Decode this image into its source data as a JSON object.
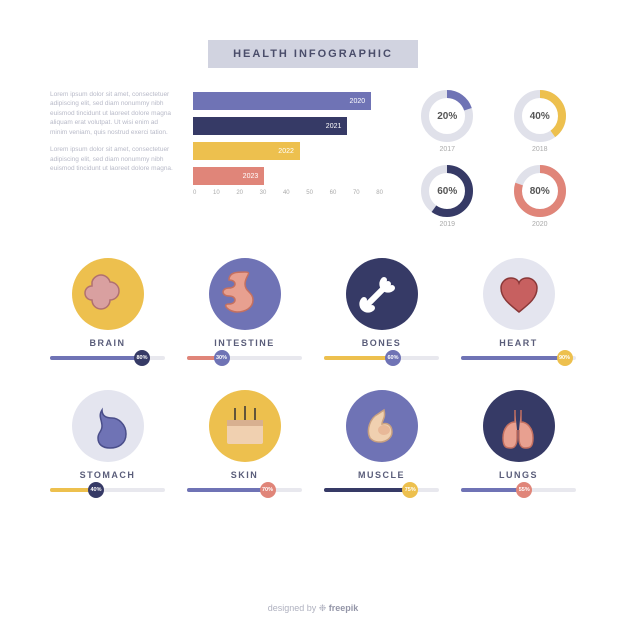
{
  "title": "HEALTH INFOGRAPHIC",
  "paragraphs": {
    "p1": "Lorem ipsum dolor sit amet, consectetuer adipiscing elit, sed diam nonummy nibh euismod tincidunt ut laoreet dolore magna aliquam erat volutpat. Ut wisi enim ad minim veniam, quis nostrud exerci tation.",
    "p2": "Lorem ipsum dolor sit amet, consectetuer adipiscing elit, sed diam nonummy nibh euismod tincidunt ut laoreet dolore magna."
  },
  "bar_chart": {
    "type": "bar",
    "bars": [
      {
        "label": "2020",
        "value": 75,
        "color": "#6f73b5"
      },
      {
        "label": "2021",
        "value": 65,
        "color": "#363a66"
      },
      {
        "label": "2022",
        "value": 45,
        "color": "#edc04e"
      },
      {
        "label": "2023",
        "value": 30,
        "color": "#e08579"
      }
    ],
    "axis_ticks": [
      "0",
      "10",
      "20",
      "30",
      "40",
      "50",
      "60",
      "70",
      "80"
    ],
    "max": 80,
    "track_color": "#e8e8ee"
  },
  "donuts": [
    {
      "pct": 20,
      "label": "2017",
      "color": "#6f73b5",
      "track": "#e0e1ea"
    },
    {
      "pct": 40,
      "label": "2018",
      "color": "#edc04e",
      "track": "#e0e1ea"
    },
    {
      "pct": 60,
      "label": "2019",
      "color": "#363a66",
      "track": "#e0e1ea"
    },
    {
      "pct": 80,
      "label": "2020",
      "color": "#e08579",
      "track": "#e0e1ea"
    }
  ],
  "organs": [
    {
      "name": "BRAIN",
      "circle": "#edc04e",
      "fill": "#6f73b5",
      "knob": "#363a66",
      "pct": 80,
      "icon": "brain"
    },
    {
      "name": "INTESTINE",
      "circle": "#6f73b5",
      "fill": "#e08579",
      "knob": "#6f73b5",
      "pct": 30,
      "icon": "intestine"
    },
    {
      "name": "BONES",
      "circle": "#363a66",
      "fill": "#edc04e",
      "knob": "#6f73b5",
      "pct": 60,
      "icon": "bone"
    },
    {
      "name": "HEART",
      "circle": "#e4e5ef",
      "fill": "#6f73b5",
      "knob": "#edc04e",
      "pct": 90,
      "icon": "heart"
    },
    {
      "name": "STOMACH",
      "circle": "#e4e5ef",
      "fill": "#edc04e",
      "knob": "#363a66",
      "pct": 40,
      "icon": "stomach"
    },
    {
      "name": "SKIN",
      "circle": "#edc04e",
      "fill": "#6f73b5",
      "knob": "#e08579",
      "pct": 70,
      "icon": "skin"
    },
    {
      "name": "MUSCLE",
      "circle": "#6f73b5",
      "fill": "#363a66",
      "knob": "#edc04e",
      "pct": 75,
      "icon": "muscle"
    },
    {
      "name": "LUNGS",
      "circle": "#363a66",
      "fill": "#6f73b5",
      "knob": "#e08579",
      "pct": 55,
      "icon": "lungs"
    }
  ],
  "footer": {
    "prefix": "designed by ",
    "brand": "freepik"
  }
}
